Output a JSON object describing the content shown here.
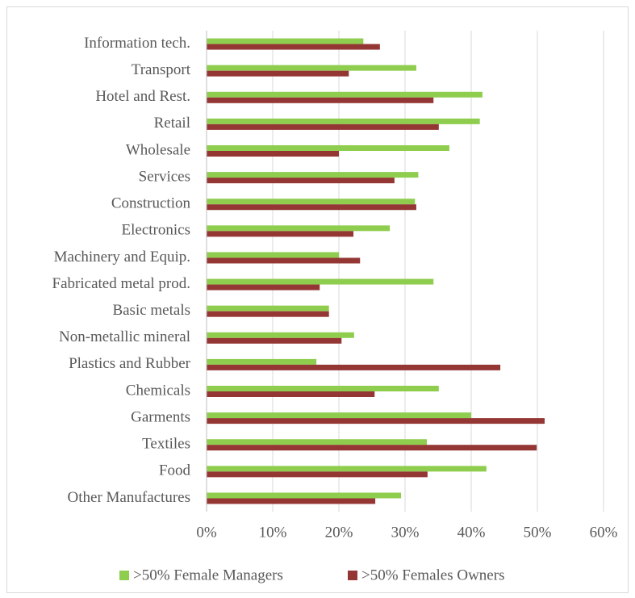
{
  "chart_data": {
    "type": "bar",
    "orientation": "horizontal",
    "categories": [
      "Information tech.",
      "Transport",
      "Hotel and Rest.",
      "Retail",
      "Wholesale",
      "Services",
      "Construction",
      "Electronics",
      "Machinery and Equip.",
      "Fabricated metal prod.",
      "Basic metals",
      "Non-metallic mineral",
      "Plastics and Rubber",
      "Chemicals",
      "Garments",
      "Textiles",
      "Food",
      "Other  Manufactures"
    ],
    "series": [
      {
        "name": ">50% Female Managers",
        "color": "#8fcd4f",
        "values": [
          23.7,
          31.7,
          41.7,
          41.3,
          36.7,
          32.0,
          31.5,
          27.7,
          20.0,
          34.3,
          18.5,
          22.3,
          16.6,
          35.1,
          40.0,
          33.3,
          42.3,
          29.4
        ]
      },
      {
        "name": ">50% Females Owners",
        "color": "#943634",
        "values": [
          26.2,
          21.5,
          34.3,
          35.1,
          20.0,
          28.4,
          31.7,
          22.2,
          23.2,
          17.1,
          18.5,
          20.4,
          44.4,
          25.4,
          51.1,
          49.9,
          33.4,
          25.5
        ]
      }
    ],
    "xlim": [
      0,
      60
    ],
    "xticks": [
      {
        "value": 0,
        "label": "0%"
      },
      {
        "value": 10,
        "label": "10%"
      },
      {
        "value": 20,
        "label": "20%"
      },
      {
        "value": 30,
        "label": "30%"
      },
      {
        "value": 40,
        "label": "40%"
      },
      {
        "value": 50,
        "label": "50%"
      },
      {
        "value": 60,
        "label": "60%"
      }
    ],
    "grid": true,
    "legend": "bottom"
  }
}
